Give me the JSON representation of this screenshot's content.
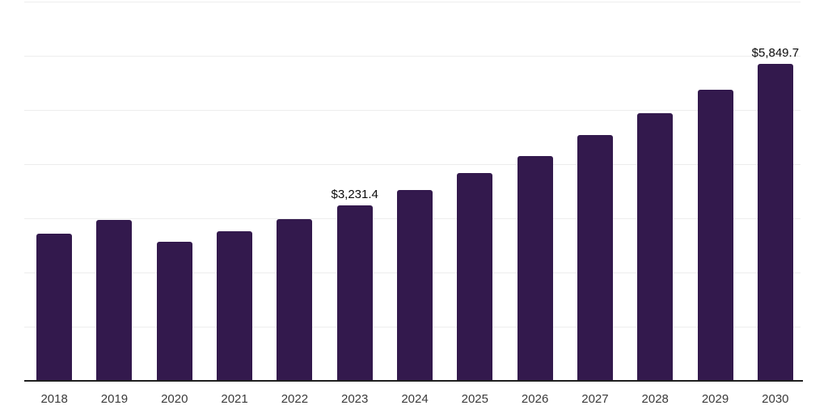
{
  "chart_data": {
    "type": "bar",
    "title": "",
    "xlabel": "",
    "ylabel": "",
    "categories": [
      "2018",
      "2019",
      "2020",
      "2021",
      "2022",
      "2023",
      "2024",
      "2025",
      "2026",
      "2027",
      "2028",
      "2029",
      "2030"
    ],
    "values": [
      2715,
      2975,
      2570,
      2765,
      2990,
      3231.4,
      3515,
      3840,
      4145,
      4535,
      4945,
      5380,
      5849.7
    ],
    "annotations": [
      {
        "category": "2023",
        "label": "$3,231.4"
      },
      {
        "category": "2030",
        "label": "$5,849.7"
      }
    ],
    "ylim": [
      0,
      7000
    ],
    "gridline_step": 1000,
    "grid": "horizontal",
    "y_tick_labels_visible": false,
    "legend": "none",
    "colors": {
      "bar": "#33194d",
      "axis": "#1f1f1f",
      "gridline": "#ededed",
      "data_label": "#0a0a0a",
      "tick_label": "#3a3a3a",
      "background": "#ffffff"
    }
  }
}
